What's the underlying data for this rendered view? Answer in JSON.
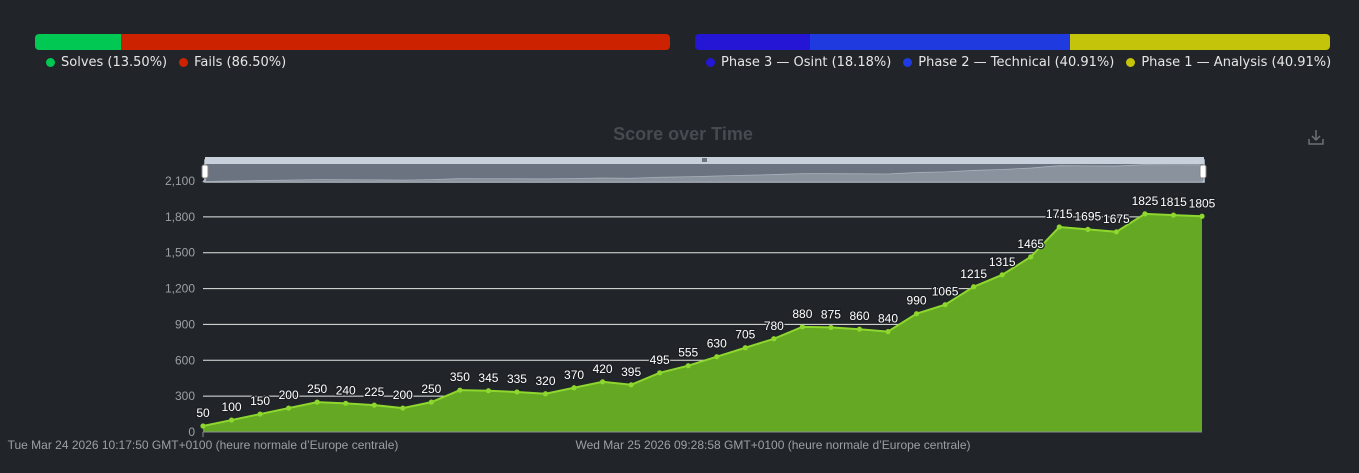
{
  "solves_bar": {
    "segments": [
      {
        "label": "Solves (13.50%)",
        "fraction": 0.135,
        "color": "#00c853"
      },
      {
        "label": "Fails (86.50%)",
        "fraction": 0.865,
        "color": "#cc2200"
      }
    ]
  },
  "phase_bar": {
    "segments": [
      {
        "label": "Phase 3 — Osint (18.18%)",
        "fraction": 0.1818,
        "color": "#2416d4"
      },
      {
        "label": "Phase 2 — Technical (40.91%)",
        "fraction": 0.4091,
        "color": "#1f3be0"
      },
      {
        "label": "Phase 1 — Analysis (40.91%)",
        "fraction": 0.4091,
        "color": "#c4c40a"
      }
    ]
  },
  "download_icon": "download-icon",
  "chart_data": {
    "type": "area",
    "title": "Score over Time",
    "values": [
      50,
      100,
      150,
      200,
      250,
      240,
      225,
      200,
      250,
      350,
      345,
      335,
      320,
      370,
      420,
      395,
      495,
      555,
      630,
      705,
      780,
      880,
      875,
      860,
      840,
      990,
      1065,
      1215,
      1315,
      1465,
      1715,
      1695,
      1675,
      1825,
      1815,
      1805
    ],
    "x_tick_labels": [
      "Tue Mar 24 2026 10:17:50 GMT+0100 (heure normale d’Europe centrale)",
      "Wed Mar 25 2026 09:28:58 GMT+0100 (heure normale d’Europe centrale)"
    ],
    "y_ticks": [
      0,
      300,
      600,
      900,
      1200,
      1500,
      1800,
      2100
    ],
    "y_tick_labels": [
      "0",
      "300",
      "600",
      "900",
      "1,200",
      "1,500",
      "1,800",
      "2,100"
    ],
    "ylim": [
      0,
      2100
    ],
    "grid": true,
    "series_color": "#8ed72e",
    "fill_color": "#64a823",
    "data_zoom": true
  }
}
